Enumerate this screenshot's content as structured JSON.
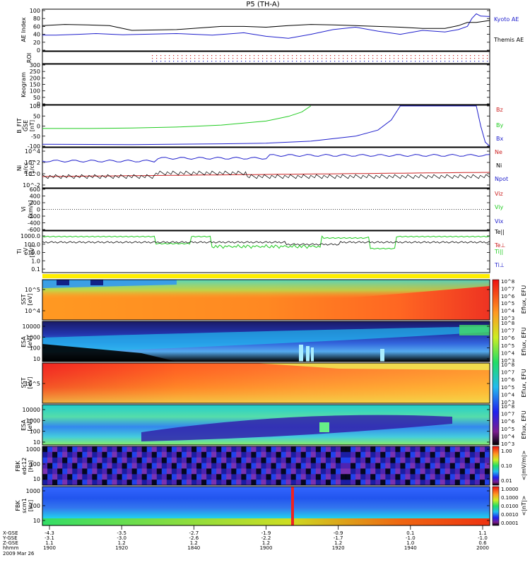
{
  "title": "P5 (TH-A)",
  "colors": {
    "kyoto": "#1f1fcc",
    "themis": "#000000",
    "red": "#cc2222",
    "green": "#22cc22",
    "blue": "#1f1fcc"
  },
  "chart_data": [
    {
      "type": "line",
      "panel": "ae",
      "ylabel": "AE Index",
      "ylim": [
        0,
        100
      ],
      "yticks": [
        "0",
        "20",
        "40",
        "60",
        "80",
        "100"
      ],
      "legend": [
        "Kyoto AE",
        "Themis AE"
      ],
      "series": [
        {
          "name": "Kyoto AE",
          "x": [
            0,
            0.03,
            0.08,
            0.12,
            0.18,
            0.22,
            0.3,
            0.38,
            0.45,
            0.5,
            0.55,
            0.6,
            0.65,
            0.7,
            0.75,
            0.8,
            0.85,
            0.9,
            0.93,
            0.95,
            0.96,
            0.97,
            0.98,
            1.0
          ],
          "values": [
            38,
            38,
            40,
            42,
            39,
            40,
            42,
            38,
            44,
            35,
            30,
            40,
            52,
            58,
            48,
            40,
            50,
            46,
            52,
            60,
            80,
            92,
            86,
            85
          ]
        },
        {
          "name": "Themis AE",
          "x": [
            0,
            0.05,
            0.1,
            0.15,
            0.2,
            0.3,
            0.4,
            0.45,
            0.5,
            0.55,
            0.6,
            0.65,
            0.7,
            0.75,
            0.8,
            0.85,
            0.9,
            0.93,
            0.95,
            0.97,
            1.0
          ],
          "values": [
            62,
            65,
            64,
            62,
            50,
            52,
            60,
            60,
            58,
            62,
            65,
            64,
            62,
            60,
            58,
            55,
            55,
            62,
            70,
            70,
            75
          ]
        }
      ]
    },
    {
      "type": "line",
      "panel": "roi",
      "ylabel": "ROI"
    },
    {
      "type": "heatmap",
      "panel": "keogram",
      "ylabel": "Keogram",
      "ylim": [
        0,
        300
      ],
      "yticks": [
        "0",
        "50",
        "100",
        "150",
        "200",
        "250",
        "300"
      ]
    },
    {
      "type": "line",
      "panel": "bfit",
      "ylabel": "B_FIT\nGSE\n[nT]",
      "ylim": [
        -100,
        100
      ],
      "yticks": [
        "-100",
        "-50",
        "0",
        "50",
        "100"
      ],
      "legend": [
        "Bz",
        "By",
        "Bx"
      ],
      "series": [
        {
          "name": "By",
          "x": [
            0,
            0.1,
            0.2,
            0.3,
            0.4,
            0.5,
            0.55,
            0.58,
            0.6
          ],
          "values": [
            -12,
            -12,
            -10,
            -5,
            5,
            25,
            48,
            70,
            100
          ]
        },
        {
          "name": "Bx",
          "x": [
            0,
            0.2,
            0.4,
            0.5,
            0.6,
            0.7,
            0.75,
            0.78,
            0.8,
            0.97,
            0.98,
            0.99,
            1.0
          ],
          "values": [
            -90,
            -92,
            -88,
            -85,
            -75,
            -50,
            -20,
            30,
            100,
            100,
            0,
            -80,
            -100
          ]
        }
      ]
    },
    {
      "type": "line",
      "panel": "ni",
      "ylabel": "Ni\nn/cc\n[1/cc]",
      "yticks": [
        "10^-2",
        "10^0",
        "10^2",
        "10^4"
      ],
      "legend": [
        "Ne",
        "Ni",
        "Npot"
      ]
    },
    {
      "type": "line",
      "panel": "vi",
      "ylabel": "Vi\n[km/s]",
      "ylim": [
        -600,
        600
      ],
      "yticks": [
        "-600",
        "-400",
        "-200",
        "0",
        "200",
        "400",
        "600"
      ],
      "legend": [
        "Viz",
        "Viy",
        "Vix"
      ]
    },
    {
      "type": "line",
      "panel": "ti",
      "ylabel": "Ti\neV\n[eV]",
      "yticks": [
        "0.1",
        "1.0",
        "10.0",
        "100.0",
        "1000.0"
      ],
      "legend": [
        "Te||",
        "Te⊥",
        "Ti||",
        "Ti⊥"
      ]
    },
    {
      "type": "heatmap",
      "panel": "sst1",
      "ylabel": "SST\neV\n[eV]",
      "yticks": [
        "10^4",
        "10^5"
      ],
      "colorbar": "Eflux, EFU",
      "cbticks": [
        "10^3",
        "10^4",
        "10^5",
        "10^6",
        "10^7",
        "10^8"
      ]
    },
    {
      "type": "heatmap",
      "panel": "esa1",
      "ylabel": "ESA\neV\n[eV]",
      "yticks": [
        "10",
        "100",
        "1000",
        "10000"
      ],
      "colorbar": "Eflux, EFU",
      "cbticks": [
        "10^3",
        "10^4",
        "10^5",
        "10^6",
        "10^7",
        "10^8"
      ]
    },
    {
      "type": "heatmap",
      "panel": "sst2",
      "ylabel": "SST\neV\n[eV]",
      "yticks": [
        "10^5"
      ],
      "colorbar": "Eflux, EFU",
      "cbticks": [
        "10^3",
        "10^4",
        "10^5",
        "10^6",
        "10^7",
        "10^8"
      ]
    },
    {
      "type": "heatmap",
      "panel": "esa2",
      "ylabel": "ESA\neV\n[eV]",
      "yticks": [
        "10",
        "100",
        "1000",
        "10000"
      ],
      "colorbar": "Eflux, EFU",
      "cbticks": [
        "10^3",
        "10^4",
        "10^5",
        "10^6",
        "10^7",
        "10^8"
      ]
    },
    {
      "type": "heatmap",
      "panel": "fbk1",
      "ylabel": "FBK\nedc12\n[Hz]",
      "yticks": [
        "10",
        "100",
        "1000"
      ],
      "colorbar": "<|mV/m|>",
      "cbticks": [
        "0.01",
        "0.10",
        "1.00"
      ]
    },
    {
      "type": "heatmap",
      "panel": "fbk2",
      "ylabel": "FBK\nscm1\n[Hz]",
      "yticks": [
        "10",
        "100",
        "1000"
      ],
      "colorbar": "<|nT|>",
      "cbticks": [
        "0.0001",
        "0.0010",
        "0.0100",
        "0.1000",
        "1.0000"
      ]
    }
  ],
  "xaxis": {
    "row_labels": [
      "X-GSE",
      "Y-GSE",
      "Z-GSE",
      "hhmm",
      "2009 Mar 26"
    ],
    "columns": [
      {
        "x": "-4.3",
        "y": "-3.1",
        "z": "1.1",
        "t": "1900"
      },
      {
        "x": "-3.5",
        "y": "-3.0",
        "z": "1.2",
        "t": "1920"
      },
      {
        "x": "-2.7",
        "y": "-2.6",
        "z": "1.2",
        "t": "1840"
      },
      {
        "x": "-1.9",
        "y": "-2.2",
        "z": "1.2",
        "t": "1900"
      },
      {
        "x": "-0.9",
        "y": "-1.7",
        "z": "1.2",
        "t": "1920"
      },
      {
        "x": "0.1",
        "y": "-1.0",
        "z": "1.0",
        "t": "1940"
      },
      {
        "x": "1.1",
        "y": "-1.0",
        "z": "0.6",
        "t": "2000"
      }
    ]
  }
}
